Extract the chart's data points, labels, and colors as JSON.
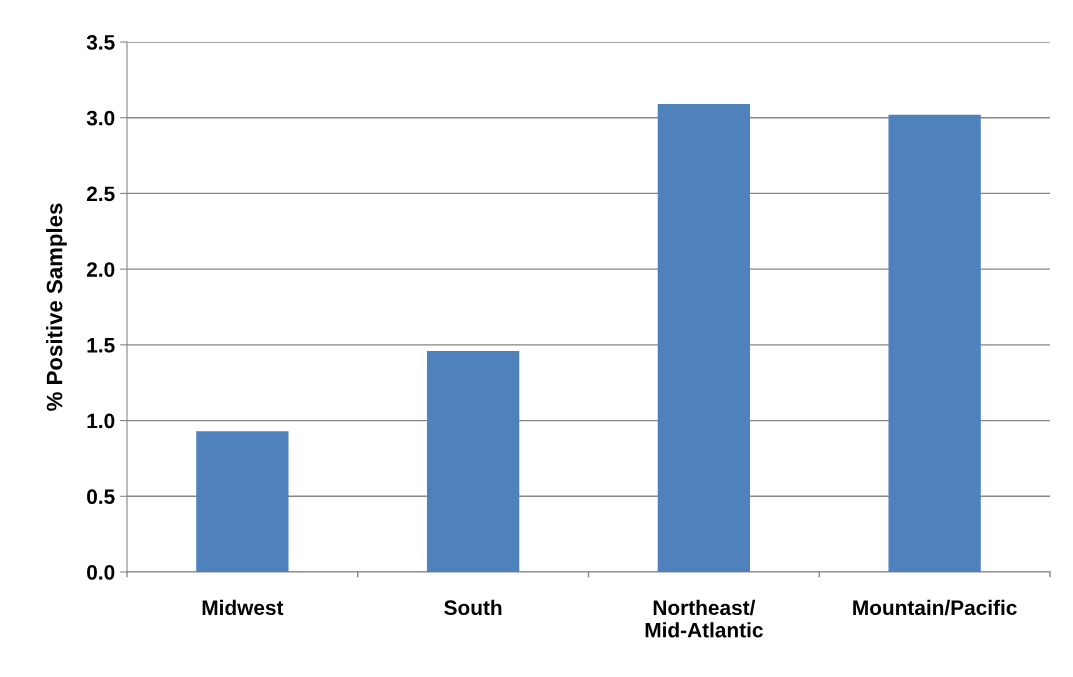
{
  "chart_data": {
    "type": "bar",
    "ylabel": "% Positive Samples",
    "categories": [
      "Midwest",
      "South",
      "Northeast/\nMid-Atlantic",
      "Mountain/Pacific"
    ],
    "values": [
      0.93,
      1.46,
      3.09,
      3.02
    ],
    "color": "#4f81bd",
    "ylim": [
      0,
      3.5
    ],
    "yticks": [
      {
        "value": 0,
        "label": "0.0"
      },
      {
        "value": 0.5,
        "label": "0.5"
      },
      {
        "value": 1,
        "label": "1.0"
      },
      {
        "value": 1.5,
        "label": "1.5"
      },
      {
        "value": 2,
        "label": "2.0"
      },
      {
        "value": 2.5,
        "label": "2.5"
      },
      {
        "value": 3,
        "label": "3.0"
      },
      {
        "value": 3.5,
        "label": "3.5"
      }
    ],
    "grid": "y"
  }
}
